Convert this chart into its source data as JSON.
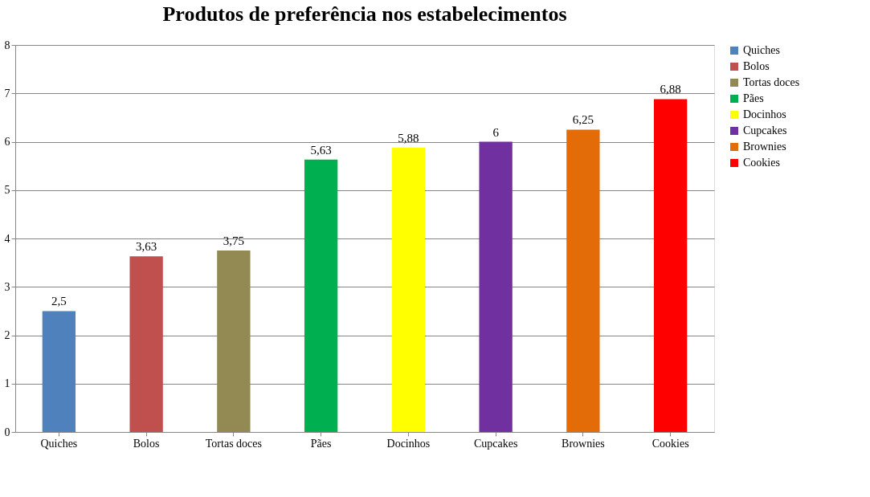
{
  "chart_data": {
    "type": "bar",
    "title": "Produtos de preferência nos estabelecimentos",
    "categories": [
      "Quiches",
      "Bolos",
      "Tortas doces",
      "Pães",
      "Docinhos",
      "Cupcakes",
      "Brownies",
      "Cookies"
    ],
    "stacked": true,
    "series": [
      {
        "name": "Quiches",
        "color": "#4f81bd",
        "values": [
          2.5,
          null,
          null,
          null,
          null,
          null,
          null,
          null
        ],
        "value_labels": [
          "2,5",
          null,
          null,
          null,
          null,
          null,
          null,
          null
        ]
      },
      {
        "name": "Bolos",
        "color": "#c0504d",
        "values": [
          null,
          3.63,
          null,
          null,
          null,
          null,
          null,
          null
        ],
        "value_labels": [
          null,
          "3,63",
          null,
          null,
          null,
          null,
          null,
          null
        ]
      },
      {
        "name": "Tortas doces",
        "color": "#938953",
        "values": [
          null,
          null,
          3.75,
          null,
          null,
          null,
          null,
          null
        ],
        "value_labels": [
          null,
          null,
          "3,75",
          null,
          null,
          null,
          null,
          null
        ]
      },
      {
        "name": "Pães",
        "color": "#00b050",
        "values": [
          null,
          null,
          null,
          5.63,
          null,
          null,
          null,
          null
        ],
        "value_labels": [
          null,
          null,
          null,
          "5,63",
          null,
          null,
          null,
          null
        ]
      },
      {
        "name": "Docinhos",
        "color": "#ffff00",
        "values": [
          null,
          null,
          null,
          null,
          5.88,
          null,
          null,
          null
        ],
        "value_labels": [
          null,
          null,
          null,
          null,
          "5,88",
          null,
          null,
          null
        ]
      },
      {
        "name": "Cupcakes",
        "color": "#7030a0",
        "values": [
          null,
          null,
          null,
          null,
          null,
          6,
          null,
          null
        ],
        "value_labels": [
          null,
          null,
          null,
          null,
          null,
          "6",
          null,
          null
        ]
      },
      {
        "name": "Brownies",
        "color": "#e36c09",
        "values": [
          null,
          null,
          null,
          null,
          null,
          null,
          6.25,
          null
        ],
        "value_labels": [
          null,
          null,
          null,
          null,
          null,
          null,
          "6,25",
          null
        ]
      },
      {
        "name": "Cookies",
        "color": "#ff0000",
        "values": [
          null,
          null,
          null,
          null,
          null,
          null,
          null,
          6.88
        ],
        "value_labels": [
          null,
          null,
          null,
          null,
          null,
          null,
          null,
          "6,88"
        ]
      }
    ],
    "ylim": [
      0,
      8
    ],
    "yticks": [
      0,
      1,
      2,
      3,
      4,
      5,
      6,
      7,
      8
    ],
    "grid": "y",
    "legend": "right"
  }
}
